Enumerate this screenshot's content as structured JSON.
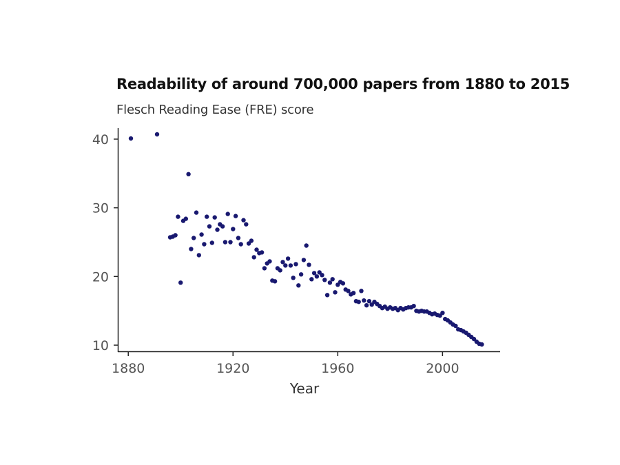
{
  "chart_data": {
    "type": "scatter",
    "title": "Readability of around 700,000 papers from 1880 to 2015",
    "subtitle": "Flesch Reading Ease (FRE) score",
    "xlabel": "Year",
    "ylabel": "",
    "xlim": [
      1876,
      2022
    ],
    "ylim": [
      9,
      41.6
    ],
    "xticks": [
      1880,
      1920,
      1960,
      2000
    ],
    "yticks": [
      10,
      20,
      30,
      40
    ],
    "grid": false,
    "legend": "none",
    "point_color": "#191970",
    "x": [
      1881,
      1891,
      1896,
      1897,
      1898,
      1899,
      1900,
      1901,
      1902,
      1903,
      1904,
      1905,
      1906,
      1907,
      1908,
      1909,
      1910,
      1911,
      1912,
      1913,
      1914,
      1915,
      1916,
      1917,
      1918,
      1919,
      1920,
      1921,
      1922,
      1923,
      1924,
      1925,
      1926,
      1927,
      1928,
      1929,
      1930,
      1931,
      1932,
      1933,
      1934,
      1935,
      1936,
      1937,
      1938,
      1939,
      1940,
      1941,
      1942,
      1943,
      1944,
      1945,
      1946,
      1947,
      1948,
      1949,
      1950,
      1951,
      1952,
      1953,
      1954,
      1955,
      1956,
      1957,
      1958,
      1959,
      1960,
      1961,
      1962,
      1963,
      1964,
      1965,
      1966,
      1967,
      1968,
      1969,
      1970,
      1971,
      1972,
      1973,
      1974,
      1975,
      1976,
      1977,
      1978,
      1979,
      1980,
      1981,
      1982,
      1983,
      1984,
      1985,
      1986,
      1987,
      1988,
      1989,
      1990,
      1991,
      1992,
      1993,
      1994,
      1995,
      1996,
      1997,
      1998,
      1999,
      2000,
      2001,
      2002,
      2003,
      2004,
      2005,
      2006,
      2007,
      2008,
      2009,
      2010,
      2011,
      2012,
      2013,
      2014,
      2015
    ],
    "y": [
      40.1,
      40.7,
      25.7,
      25.8,
      26.0,
      28.7,
      19.1,
      28.1,
      28.4,
      34.9,
      24.0,
      25.6,
      29.3,
      23.1,
      26.1,
      24.7,
      28.7,
      27.3,
      24.9,
      28.6,
      26.8,
      27.6,
      27.3,
      25.0,
      29.1,
      25.0,
      26.9,
      28.8,
      25.6,
      24.7,
      28.2,
      27.6,
      24.8,
      25.2,
      22.8,
      23.9,
      23.4,
      23.5,
      21.2,
      21.9,
      22.2,
      19.4,
      19.3,
      21.2,
      20.9,
      22.1,
      21.6,
      22.6,
      21.6,
      19.8,
      21.8,
      18.7,
      20.3,
      22.4,
      24.5,
      21.7,
      19.6,
      20.5,
      20.0,
      20.6,
      20.2,
      19.5,
      17.3,
      19.1,
      19.6,
      17.7,
      18.8,
      19.2,
      19.0,
      18.1,
      17.9,
      17.4,
      17.6,
      16.4,
      16.3,
      17.9,
      16.5,
      15.8,
      16.4,
      15.9,
      16.3,
      16.0,
      15.7,
      15.4,
      15.6,
      15.3,
      15.5,
      15.3,
      15.4,
      15.1,
      15.4,
      15.2,
      15.4,
      15.5,
      15.5,
      15.7,
      15.0,
      14.9,
      15.0,
      14.9,
      14.9,
      14.7,
      14.5,
      14.6,
      14.4,
      14.3,
      14.7,
      13.8,
      13.6,
      13.3,
      13.0,
      12.8,
      12.3,
      12.2,
      12.0,
      11.8,
      11.5,
      11.2,
      10.9,
      10.5,
      10.2,
      10.1
    ]
  }
}
